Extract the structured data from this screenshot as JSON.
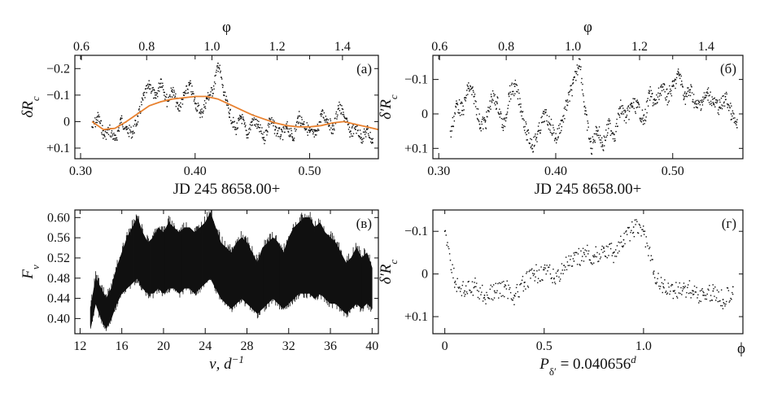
{
  "figure": {
    "background": "#ffffff",
    "ink": "#111111",
    "model_color": "#e8812f"
  },
  "chart_data": [
    {
      "panel": "a",
      "type": "scatter",
      "label": "(а)",
      "xlabel": "JD 245 8658.00+",
      "ylabel": "δR",
      "ylabel_sub": "c",
      "top_axis_label": "φ",
      "xlim": [
        0.295,
        0.56
      ],
      "ylim": [
        -0.25,
        0.14
      ],
      "y_inverted": true,
      "xticks": [
        0.3,
        0.4,
        0.5
      ],
      "xtick_labels": [
        "0.30",
        "0.40",
        "0.50"
      ],
      "yticks": [
        -0.2,
        -0.1,
        0,
        0.1
      ],
      "ytick_labels": [
        "−0.2",
        "−0.1",
        "0",
        "+0.1"
      ],
      "top_ticks": [
        0.6,
        0.8,
        1.0,
        1.2,
        1.4
      ],
      "top_tick_labels": [
        "0.6",
        "0.8",
        "1.0",
        "1.2",
        "1.4"
      ],
      "top_range": [
        0.58,
        1.51
      ],
      "series": [
        {
          "kind": "points",
          "color": "#111111",
          "x": [
            0.31,
            0.315,
            0.32,
            0.325,
            0.33,
            0.335,
            0.34,
            0.345,
            0.35,
            0.355,
            0.36,
            0.365,
            0.37,
            0.375,
            0.38,
            0.385,
            0.39,
            0.395,
            0.4,
            0.405,
            0.41,
            0.415,
            0.42,
            0.425,
            0.43,
            0.435,
            0.44,
            0.445,
            0.45,
            0.455,
            0.46,
            0.465,
            0.47,
            0.475,
            0.48,
            0.485,
            0.49,
            0.495,
            0.5,
            0.505,
            0.51,
            0.515,
            0.52,
            0.525,
            0.53,
            0.535,
            0.54,
            0.545,
            0.55,
            0.555
          ],
          "y": [
            0.02,
            -0.02,
            0.05,
            0.03,
            0.07,
            -0.01,
            0.03,
            0.04,
            -0.02,
            -0.1,
            -0.14,
            -0.09,
            -0.16,
            -0.08,
            -0.12,
            -0.05,
            -0.1,
            -0.14,
            -0.07,
            -0.03,
            -0.09,
            -0.12,
            -0.22,
            -0.1,
            -0.03,
            0.03,
            -0.02,
            0.05,
            -0.01,
            0.02,
            0.06,
            -0.01,
            0.03,
            0.05,
            0.02,
            0.06,
            -0.02,
            0.01,
            0.04,
            0.05,
            -0.03,
            -0.01,
            0.03,
            -0.06,
            -0.02,
            0.04,
            0.02,
            0.06,
            0.03,
            0.08
          ]
        },
        {
          "kind": "line",
          "color": "#e8812f",
          "x": [
            0.31,
            0.32,
            0.33,
            0.34,
            0.35,
            0.36,
            0.37,
            0.38,
            0.39,
            0.4,
            0.41,
            0.42,
            0.43,
            0.44,
            0.45,
            0.46,
            0.47,
            0.48,
            0.49,
            0.5,
            0.51,
            0.52,
            0.53,
            0.54,
            0.55,
            0.56
          ],
          "y": [
            0.0,
            0.03,
            0.025,
            0.0,
            -0.03,
            -0.06,
            -0.075,
            -0.085,
            -0.09,
            -0.095,
            -0.095,
            -0.085,
            -0.065,
            -0.045,
            -0.025,
            -0.01,
            0.005,
            0.015,
            0.02,
            0.02,
            0.015,
            0.005,
            0.0,
            0.01,
            0.02,
            0.03
          ]
        }
      ]
    },
    {
      "panel": "b",
      "type": "scatter",
      "label": "(б)",
      "xlabel": "JD 245 8658.00+",
      "ylabel": "δ′R",
      "ylabel_sub": "c",
      "top_axis_label": "φ",
      "xlim": [
        0.295,
        0.56
      ],
      "ylim": [
        -0.17,
        0.13
      ],
      "y_inverted": true,
      "xticks": [
        0.3,
        0.4,
        0.5
      ],
      "xtick_labels": [
        "0.30",
        "0.40",
        "0.50"
      ],
      "yticks": [
        -0.1,
        0,
        0.1
      ],
      "ytick_labels": [
        "−0.1",
        "0",
        "+0.1"
      ],
      "top_ticks": [
        0.6,
        0.8,
        1.0,
        1.2,
        1.4
      ],
      "top_tick_labels": [
        "0.6",
        "0.8",
        "1.0",
        "1.2",
        "1.4"
      ],
      "top_range": [
        0.58,
        1.51
      ],
      "series": [
        {
          "kind": "points",
          "color": "#111111",
          "x": [
            0.31,
            0.315,
            0.32,
            0.325,
            0.33,
            0.335,
            0.34,
            0.345,
            0.35,
            0.355,
            0.36,
            0.365,
            0.37,
            0.375,
            0.38,
            0.385,
            0.39,
            0.395,
            0.4,
            0.405,
            0.41,
            0.415,
            0.42,
            0.425,
            0.43,
            0.435,
            0.44,
            0.445,
            0.45,
            0.455,
            0.46,
            0.465,
            0.47,
            0.475,
            0.48,
            0.485,
            0.49,
            0.495,
            0.5,
            0.505,
            0.51,
            0.515,
            0.52,
            0.525,
            0.53,
            0.535,
            0.54,
            0.545,
            0.55,
            0.555
          ],
          "y": [
            0.05,
            -0.03,
            -0.01,
            -0.08,
            -0.05,
            0.03,
            0.02,
            -0.05,
            -0.03,
            0.04,
            -0.06,
            -0.08,
            -0.02,
            0.06,
            0.09,
            0.05,
            0.0,
            0.03,
            0.07,
            0.02,
            -0.04,
            -0.09,
            -0.16,
            0.0,
            0.1,
            0.04,
            0.09,
            0.03,
            0.06,
            -0.02,
            0.01,
            -0.03,
            -0.02,
            0.02,
            -0.06,
            -0.03,
            -0.08,
            -0.05,
            -0.08,
            -0.12,
            -0.05,
            -0.07,
            -0.02,
            -0.04,
            -0.06,
            -0.03,
            -0.02,
            -0.05,
            0.0,
            0.04
          ]
        }
      ]
    },
    {
      "panel": "v",
      "type": "line",
      "label": "(в)",
      "xlabel": "ν, d",
      "xlabel_sup": "−1",
      "ylabel": "F",
      "ylabel_sub": "ν",
      "xlim": [
        11.5,
        40.6
      ],
      "ylim": [
        0.37,
        0.615
      ],
      "xticks": [
        12,
        16,
        20,
        24,
        28,
        32,
        36,
        40
      ],
      "xtick_labels": [
        "12",
        "16",
        "20",
        "24",
        "28",
        "32",
        "36",
        "40"
      ],
      "yticks": [
        0.4,
        0.44,
        0.48,
        0.52,
        0.56,
        0.6
      ],
      "ytick_labels": [
        "0.40",
        "0.44",
        "0.48",
        "0.52",
        "0.56",
        "0.60"
      ],
      "series": [
        {
          "kind": "band",
          "color": "#111111",
          "x": [
            13.0,
            13.5,
            14.0,
            14.5,
            15.0,
            15.5,
            16.0,
            16.5,
            17.0,
            17.5,
            18.0,
            18.5,
            19.0,
            19.5,
            20.0,
            20.5,
            21.0,
            21.5,
            22.0,
            22.5,
            23.0,
            23.5,
            24.0,
            24.5,
            25.0,
            25.5,
            26.0,
            26.5,
            27.0,
            27.5,
            28.0,
            28.5,
            29.0,
            29.5,
            30.0,
            30.5,
            31.0,
            31.5,
            32.0,
            32.5,
            33.0,
            33.5,
            34.0,
            34.5,
            35.0,
            35.5,
            36.0,
            36.5,
            37.0,
            37.5,
            38.0,
            38.5,
            39.0,
            39.5,
            40.0
          ],
          "upper": [
            0.42,
            0.48,
            0.46,
            0.44,
            0.46,
            0.5,
            0.53,
            0.56,
            0.58,
            0.6,
            0.57,
            0.55,
            0.56,
            0.58,
            0.57,
            0.59,
            0.58,
            0.57,
            0.58,
            0.58,
            0.57,
            0.58,
            0.59,
            0.61,
            0.58,
            0.55,
            0.54,
            0.53,
            0.55,
            0.56,
            0.55,
            0.53,
            0.51,
            0.54,
            0.55,
            0.56,
            0.55,
            0.53,
            0.56,
            0.58,
            0.59,
            0.6,
            0.6,
            0.58,
            0.59,
            0.57,
            0.56,
            0.55,
            0.53,
            0.51,
            0.52,
            0.54,
            0.52,
            0.53,
            0.5
          ],
          "lower": [
            0.38,
            0.43,
            0.4,
            0.38,
            0.4,
            0.43,
            0.45,
            0.46,
            0.47,
            0.48,
            0.46,
            0.45,
            0.45,
            0.46,
            0.45,
            0.46,
            0.46,
            0.45,
            0.46,
            0.46,
            0.45,
            0.46,
            0.47,
            0.48,
            0.46,
            0.44,
            0.43,
            0.42,
            0.43,
            0.44,
            0.43,
            0.42,
            0.41,
            0.42,
            0.43,
            0.44,
            0.43,
            0.42,
            0.43,
            0.44,
            0.45,
            0.45,
            0.45,
            0.44,
            0.45,
            0.44,
            0.43,
            0.43,
            0.42,
            0.41,
            0.42,
            0.43,
            0.42,
            0.43,
            0.42
          ]
        }
      ]
    },
    {
      "panel": "g",
      "type": "scatter",
      "label": "(г)",
      "xlabel": "P",
      "xlabel_sub": "δ′",
      "xlabel_rest": " = 0.040656",
      "xlabel_sup": "d",
      "ylabel": "δ′R",
      "ylabel_sub": "c",
      "right_axis_label": "ϕ",
      "xlim": [
        -0.06,
        1.5
      ],
      "ylim": [
        -0.15,
        0.14
      ],
      "y_inverted": true,
      "xticks": [
        0,
        0.5,
        1.0
      ],
      "xtick_labels": [
        "0",
        "0.5",
        "1.0"
      ],
      "yticks": [
        -0.1,
        0,
        0.1
      ],
      "ytick_labels": [
        "−0.1",
        "0",
        "+0.1"
      ],
      "series": [
        {
          "kind": "points",
          "color": "#111111",
          "x": [
            0.0,
            0.05,
            0.1,
            0.15,
            0.2,
            0.25,
            0.3,
            0.35,
            0.4,
            0.45,
            0.5,
            0.55,
            0.6,
            0.65,
            0.7,
            0.75,
            0.8,
            0.85,
            0.9,
            0.95,
            1.0,
            1.05,
            1.1,
            1.15,
            1.2,
            1.25,
            1.3,
            1.35,
            1.4,
            1.45
          ],
          "y": [
            -0.1,
            0.02,
            0.04,
            0.03,
            0.05,
            0.04,
            0.03,
            0.05,
            0.02,
            0.0,
            -0.01,
            0.01,
            -0.02,
            -0.03,
            -0.05,
            -0.04,
            -0.06,
            -0.05,
            -0.08,
            -0.11,
            -0.1,
            0.0,
            0.03,
            0.04,
            0.03,
            0.04,
            0.05,
            0.04,
            0.06,
            0.03
          ]
        }
      ]
    }
  ]
}
